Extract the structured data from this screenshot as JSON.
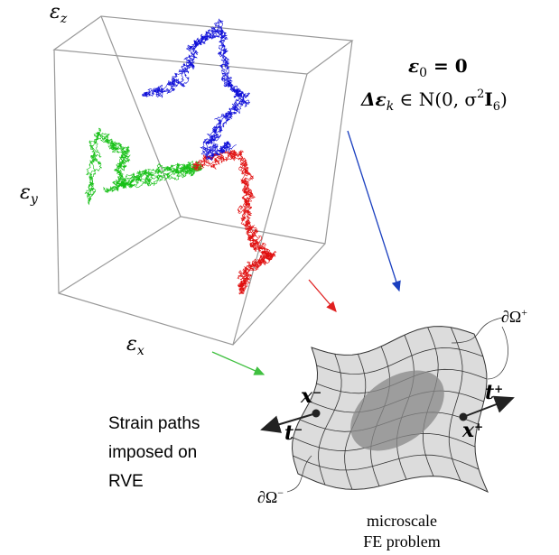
{
  "axis_labels": [
    {
      "symbol": "ε",
      "subscript": "z"
    },
    {
      "symbol": "ε",
      "subscript": "y"
    },
    {
      "symbol": "ε",
      "subscript": "x"
    }
  ],
  "equations": {
    "initial": {
      "symbol": "ε",
      "subscript": "0",
      "rest": " = 0"
    },
    "increment": {
      "symbol": "Δε",
      "subscript": "k",
      "middle": " ∈ N(0, σ",
      "power": "2",
      "matrix": "I",
      "matrix_subscript": "6",
      "end": ")"
    }
  },
  "boundaries": {
    "plus": {
      "symbol": "∂Ω",
      "superscript": "+"
    },
    "minus": {
      "symbol": "∂Ω",
      "superscript": "−"
    }
  },
  "points": {
    "x_minus": {
      "symbol": "x",
      "superscript": "−"
    },
    "x_plus": {
      "symbol": "x",
      "superscript": "+"
    },
    "t_plus": {
      "symbol": "t",
      "superscript": "+"
    },
    "t_minus": {
      "symbol": "t",
      "superscript": "−"
    }
  },
  "caption": [
    "Strain paths",
    "imposed on",
    "RVE"
  ],
  "fe_caption": [
    "microscale",
    "FE problem"
  ]
}
